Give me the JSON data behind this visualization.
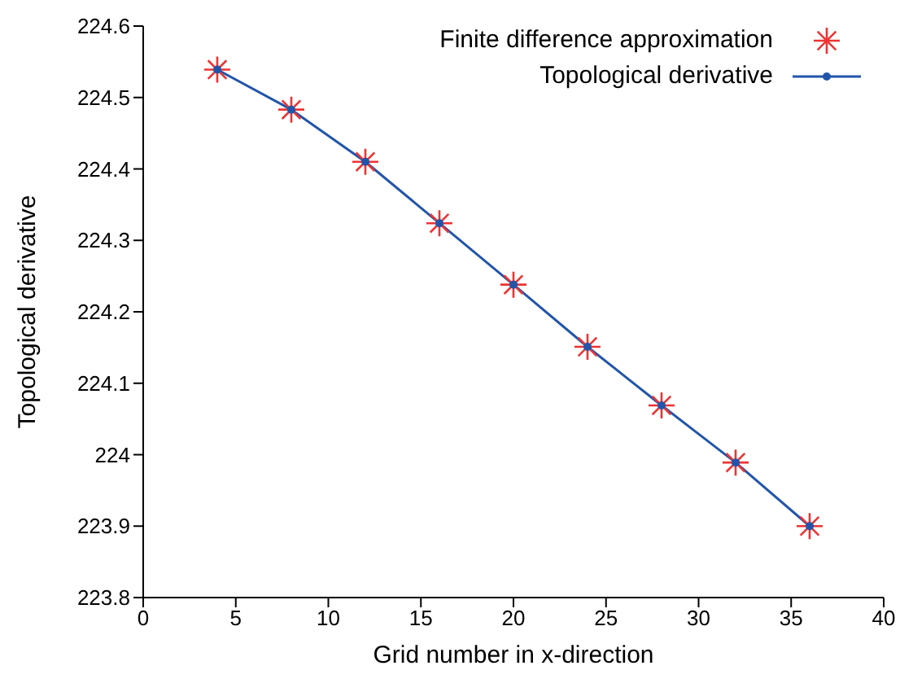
{
  "chart_data": {
    "type": "line",
    "xlabel": "Grid number in x-direction",
    "ylabel": "Topological derivative",
    "x": [
      4,
      8,
      12,
      16,
      20,
      24,
      28,
      32,
      36
    ],
    "series": [
      {
        "name": "Finite difference approximation",
        "type": "scatter",
        "marker": "cross",
        "color": "#ee3333",
        "values": [
          224.539,
          224.483,
          224.41,
          224.324,
          224.238,
          224.151,
          224.069,
          223.989,
          223.9
        ]
      },
      {
        "name": "Topological derivative",
        "marker": "circle",
        "color": "#2255aa",
        "values": [
          224.539,
          224.483,
          224.41,
          224.324,
          224.238,
          224.151,
          224.069,
          223.989,
          223.9
        ]
      }
    ],
    "xlim": [
      0,
      40
    ],
    "xticks": [
      0,
      5,
      10,
      15,
      20,
      25,
      30,
      35,
      40
    ],
    "ylim": [
      223.8,
      224.6
    ],
    "yticks": [
      223.8,
      223.9,
      224,
      224.1,
      224.2,
      224.3,
      224.4,
      224.5,
      224.6
    ],
    "grid": false,
    "legend": "top right"
  }
}
